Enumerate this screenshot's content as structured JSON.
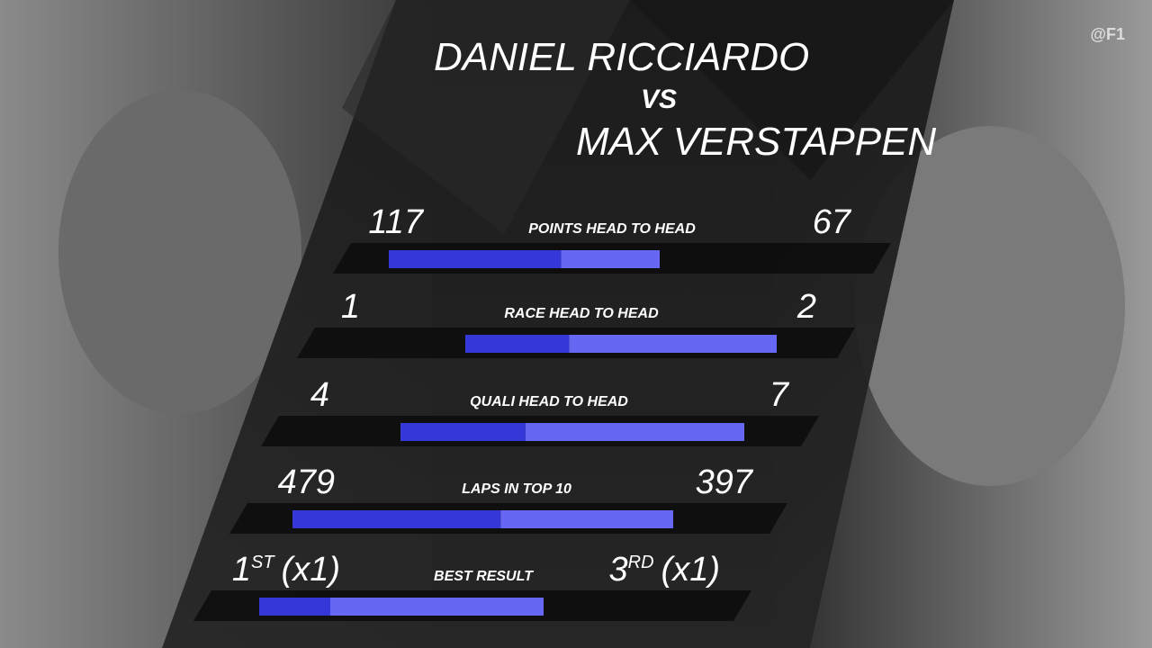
{
  "header": {
    "driver1": "DANIEL RICCIARDO",
    "vs": "VS",
    "driver2": "MAX VERSTAPPEN",
    "handle": "@F1"
  },
  "stats": [
    {
      "label": "POINTS HEAD TO HEAD",
      "left": 117,
      "right": 67
    },
    {
      "label": "RACE HEAD TO HEAD",
      "left": 1,
      "right": 2
    },
    {
      "label": "QUALI HEAD TO HEAD",
      "left": 4,
      "right": 7
    },
    {
      "label": "LAPS IN TOP 10",
      "left": 479,
      "right": 397
    },
    {
      "label": "BEST RESULT",
      "left": 1,
      "left_suffix": "ST",
      "left_note": "(x1)",
      "right": 3,
      "right_suffix": "RD",
      "right_note": "(x1)"
    }
  ],
  "colors": {
    "left": "#3637d8",
    "right": "#6667f2"
  }
}
